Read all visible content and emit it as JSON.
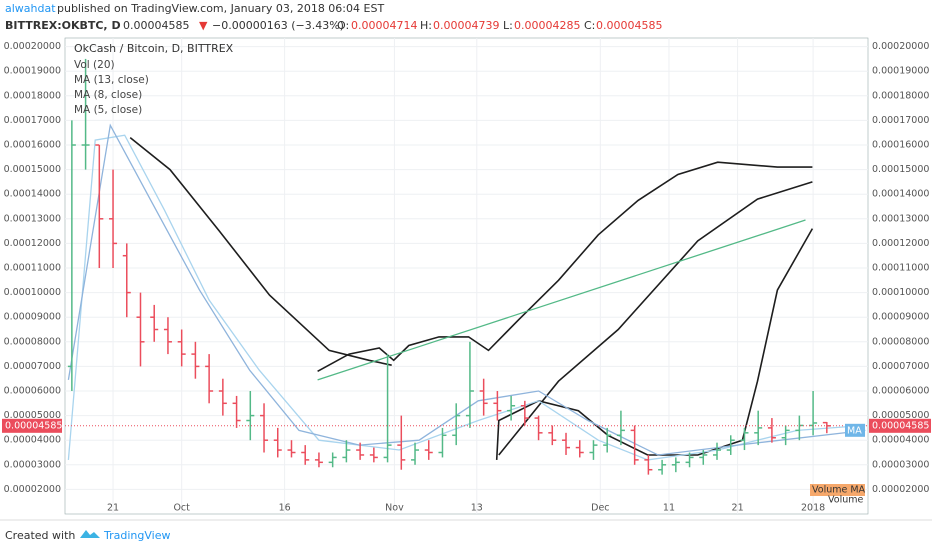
{
  "header": {
    "author": "alwahdat",
    "published": " published on TradingView.com, January 03, 2018 06:04 EST",
    "symbol": "BITTREX:OKBTC, D",
    "price": "0.00004585",
    "arrow": "▼",
    "change": "−0.00000163 (−3.43%)",
    "o_label": "O:",
    "o": "0.00004714",
    "h_label": "H:",
    "h": "0.00004739",
    "l_label": "L:",
    "l": "0.00004285",
    "c_label": "C:",
    "c": "0.00004585"
  },
  "footer": {
    "created": "Created with",
    "brand": "TradingView"
  },
  "chart_data": {
    "type": "candlestick",
    "title": "OkCash / Bitcoin, D, BITTREX",
    "indicators": [
      "Vol (20)",
      "MA (13, close)",
      "MA (8, close)",
      "MA (5, close)"
    ],
    "tags": {
      "ma": "MA",
      "volume_ma": "Volume MA",
      "volume": "Volume"
    },
    "up_color": "#53b987",
    "down_color": "#eb4d5c",
    "last_price": {
      "value": 4.585e-05,
      "label": "0.00004585"
    },
    "xlim": [
      14,
      131
    ],
    "ylim": [
      1e-05,
      0.0002035
    ],
    "xticks": [
      {
        "value": 21,
        "label": "21"
      },
      {
        "value": 31,
        "label": "Oct"
      },
      {
        "value": 46,
        "label": "16"
      },
      {
        "value": 62,
        "label": "Nov"
      },
      {
        "value": 74,
        "label": "13"
      },
      {
        "value": 92,
        "label": "Dec"
      },
      {
        "value": 102,
        "label": "11"
      },
      {
        "value": 112,
        "label": "21"
      },
      {
        "value": 123,
        "label": "2018"
      }
    ],
    "yticks": [
      {
        "value": 2e-05,
        "label": "0.00002000"
      },
      {
        "value": 3e-05,
        "label": "0.00003000"
      },
      {
        "value": 4e-05,
        "label": "0.00004000"
      },
      {
        "value": 5e-05,
        "label": "0.00005000"
      },
      {
        "value": 6e-05,
        "label": "0.00006000"
      },
      {
        "value": 7e-05,
        "label": "0.00007000"
      },
      {
        "value": 8e-05,
        "label": "0.00008000"
      },
      {
        "value": 9e-05,
        "label": "0.00009000"
      },
      {
        "value": 0.0001,
        "label": "0.00010000"
      },
      {
        "value": 0.00011,
        "label": "0.00011000"
      },
      {
        "value": 0.00012,
        "label": "0.00012000"
      },
      {
        "value": 0.00013,
        "label": "0.00013000"
      },
      {
        "value": 0.00014,
        "label": "0.00014000"
      },
      {
        "value": 0.00015,
        "label": "0.00015000"
      },
      {
        "value": 0.00016,
        "label": "0.00016000"
      },
      {
        "value": 0.00017,
        "label": "0.00017000"
      },
      {
        "value": 0.00018,
        "label": "0.00018000"
      },
      {
        "value": 0.00019,
        "label": "0.00019000"
      },
      {
        "value": 0.0002,
        "label": "0.00020000"
      }
    ],
    "x": [
      15,
      17,
      19,
      21,
      23,
      25,
      27,
      29,
      31,
      33,
      35,
      37,
      39,
      41,
      43,
      45,
      47,
      49,
      51,
      53,
      55,
      57,
      59,
      61,
      63,
      65,
      67,
      69,
      71,
      73,
      75,
      77,
      79,
      81,
      83,
      85,
      87,
      89,
      91,
      93,
      95,
      97,
      99,
      101,
      103,
      105,
      107,
      109,
      111,
      113,
      115,
      117,
      119,
      121,
      123,
      125
    ],
    "open": [
      7e-05,
      0.00016,
      0.00016,
      0.00013,
      0.000115,
      9e-05,
      9e-05,
      8.5e-05,
      8e-05,
      7.5e-05,
      7e-05,
      6e-05,
      5.5e-05,
      4.8e-05,
      5e-05,
      4e-05,
      3.6e-05,
      3.5e-05,
      3.2e-05,
      3.1e-05,
      3.3e-05,
      3.6e-05,
      3.4e-05,
      3.3e-05,
      3.8e-05,
      3.2e-05,
      3.6e-05,
      3.5e-05,
      4.2e-05,
      5e-05,
      6e-05,
      5.5e-05,
      5.2e-05,
      5.4e-05,
      4.9e-05,
      4.3e-05,
      4e-05,
      3.7e-05,
      3.5e-05,
      3.8e-05,
      4.2e-05,
      4.4e-05,
      3.2e-05,
      2.8e-05,
      3e-05,
      3.1e-05,
      3.3e-05,
      3.4e-05,
      3.6e-05,
      4e-05,
      4.3e-05,
      4.5e-05,
      4.1e-05,
      4.4e-05,
      4.6e-05,
      4.714e-05
    ],
    "high": [
      0.00017,
      0.000195,
      0.00016,
      0.00015,
      0.00012,
      0.0001,
      9.5e-05,
      9e-05,
      8.5e-05,
      8e-05,
      7.5e-05,
      6.5e-05,
      5.8e-05,
      6e-05,
      5.5e-05,
      4.5e-05,
      4e-05,
      3.8e-05,
      3.5e-05,
      3.5e-05,
      4e-05,
      3.9e-05,
      3.7e-05,
      7.5e-05,
      5e-05,
      3.9e-05,
      4e-05,
      4.5e-05,
      5.5e-05,
      8e-05,
      6.5e-05,
      6e-05,
      5.8e-05,
      5.6e-05,
      5e-05,
      4.6e-05,
      4.3e-05,
      4e-05,
      4e-05,
      4.5e-05,
      5.2e-05,
      4.6e-05,
      3.4e-05,
      3.2e-05,
      3.3e-05,
      3.5e-05,
      3.6e-05,
      3.9e-05,
      4.2e-05,
      4.5e-05,
      5.2e-05,
      4.9e-05,
      4.6e-05,
      5e-05,
      6e-05,
      4.739e-05
    ],
    "low": [
      6e-05,
      0.00015,
      0.00011,
      0.00011,
      9e-05,
      7e-05,
      8e-05,
      7.5e-05,
      7e-05,
      6.5e-05,
      5.5e-05,
      5e-05,
      4.5e-05,
      4e-05,
      3.5e-05,
      3.3e-05,
      3.3e-05,
      3e-05,
      2.9e-05,
      2.9e-05,
      3.1e-05,
      3.2e-05,
      3.1e-05,
      3.1e-05,
      2.8e-05,
      3e-05,
      3.2e-05,
      3.3e-05,
      3.8e-05,
      4.5e-05,
      5e-05,
      4.8e-05,
      4.8e-05,
      4.6e-05,
      4e-05,
      3.8e-05,
      3.4e-05,
      3.3e-05,
      3.2e-05,
      3.5e-05,
      3.8e-05,
      3e-05,
      2.6e-05,
      2.6e-05,
      2.7e-05,
      2.9e-05,
      3e-05,
      3.2e-05,
      3.4e-05,
      3.6e-05,
      3.8e-05,
      3.9e-05,
      3.8e-05,
      4e-05,
      4.2e-05,
      4.285e-05
    ],
    "close": [
      0.00016,
      0.00016,
      0.00013,
      0.00012,
      0.0001,
      8e-05,
      8.5e-05,
      8e-05,
      7.5e-05,
      7e-05,
      6e-05,
      5.5e-05,
      4.8e-05,
      5e-05,
      4e-05,
      3.6e-05,
      3.5e-05,
      3.2e-05,
      3.1e-05,
      3.3e-05,
      3.6e-05,
      3.4e-05,
      3.3e-05,
      3.8e-05,
      3.2e-05,
      3.6e-05,
      3.5e-05,
      4.2e-05,
      5e-05,
      6e-05,
      5.5e-05,
      5.2e-05,
      5.4e-05,
      4.9e-05,
      4.3e-05,
      4e-05,
      3.7e-05,
      3.5e-05,
      3.8e-05,
      4.2e-05,
      4.4e-05,
      3.2e-05,
      2.8e-05,
      3e-05,
      3.1e-05,
      3.3e-05,
      3.4e-05,
      3.6e-05,
      4e-05,
      4.3e-05,
      4.5e-05,
      4.1e-05,
      4.4e-05,
      4.6e-05,
      4.7e-05,
      4.585e-05
    ],
    "lines": [
      {
        "color": "#1e1e1e",
        "x": [
          23.5,
          29.3,
          36.5,
          43.8,
          52.5,
          58.3,
          61.6
        ],
        "values": [
          0.000163,
          0.00015,
          0.000125,
          9.9e-05,
          7.65e-05,
          7.25e-05,
          7.05e-05
        ]
      },
      {
        "color": "#1e1e1e",
        "x": [
          50.8,
          55.4,
          59.8,
          61.9,
          64.1,
          68.5,
          72.8,
          75.7,
          80.1,
          85.9,
          91.7,
          97.5,
          103.3,
          109.1,
          117.8,
          122.9
        ],
        "values": [
          6.8e-05,
          7.5e-05,
          7.75e-05,
          7.25e-05,
          7.85e-05,
          8.2e-05,
          8.2e-05,
          7.65e-05,
          8.9e-05,
          0.000105,
          0.0001235,
          0.0001375,
          0.000148,
          0.000153,
          0.000151,
          0.000151
        ]
      },
      {
        "color": "#1e1e1e",
        "x": [
          76.9,
          77.2,
          83,
          88.8,
          93.1,
          98.9,
          106.2,
          112.7,
          114.9,
          117.8,
          122.9
        ],
        "values": [
          3.2e-05,
          4.8e-05,
          5.6e-05,
          5.2e-05,
          4.2e-05,
          3.4e-05,
          3.4e-05,
          4e-05,
          6.4e-05,
          0.000101,
          0.000126
        ]
      },
      {
        "color": "#1e1e1e",
        "x": [
          77.2,
          85.9,
          94.6,
          106.2,
          114.9,
          122.9
        ],
        "values": [
          3.4e-05,
          6.4e-05,
          8.5e-05,
          0.000121,
          0.000138,
          0.000145
        ]
      },
      {
        "color": "#53b987",
        "x": [
          50.8,
          121.9
        ],
        "values": [
          6.45e-05,
          0.0001295
        ]
      },
      {
        "color": "#a9d4ee",
        "x": [
          14.5,
          18.4,
          22.7,
          28.5,
          35,
          42.3,
          51,
          62.7,
          74.2,
          83,
          91.7,
          98.9,
          109.1,
          120.7,
          130.6
        ],
        "values": [
          3.2e-05,
          0.000162,
          0.000164,
          0.0001335,
          9.7e-05,
          6.85e-05,
          4e-05,
          3.6e-05,
          4.8e-05,
          5.6e-05,
          4e-05,
          3.2e-05,
          3.6e-05,
          4.4e-05,
          4.6e-05
        ]
      },
      {
        "color": "#8fb4dc",
        "x": [
          14.5,
          20.6,
          26.4,
          33.6,
          40.9,
          48.1,
          56.9,
          65.6,
          74.2,
          83,
          90.2,
          100.4,
          112,
          130.6
        ],
        "values": [
          6.45e-05,
          0.000168,
          0.000138,
          0.000101,
          6.85e-05,
          4.4e-05,
          3.8e-05,
          4e-05,
          5.6e-05,
          6e-05,
          4.8e-05,
          3.4e-05,
          3.8e-05,
          4.4e-05
        ]
      }
    ]
  }
}
